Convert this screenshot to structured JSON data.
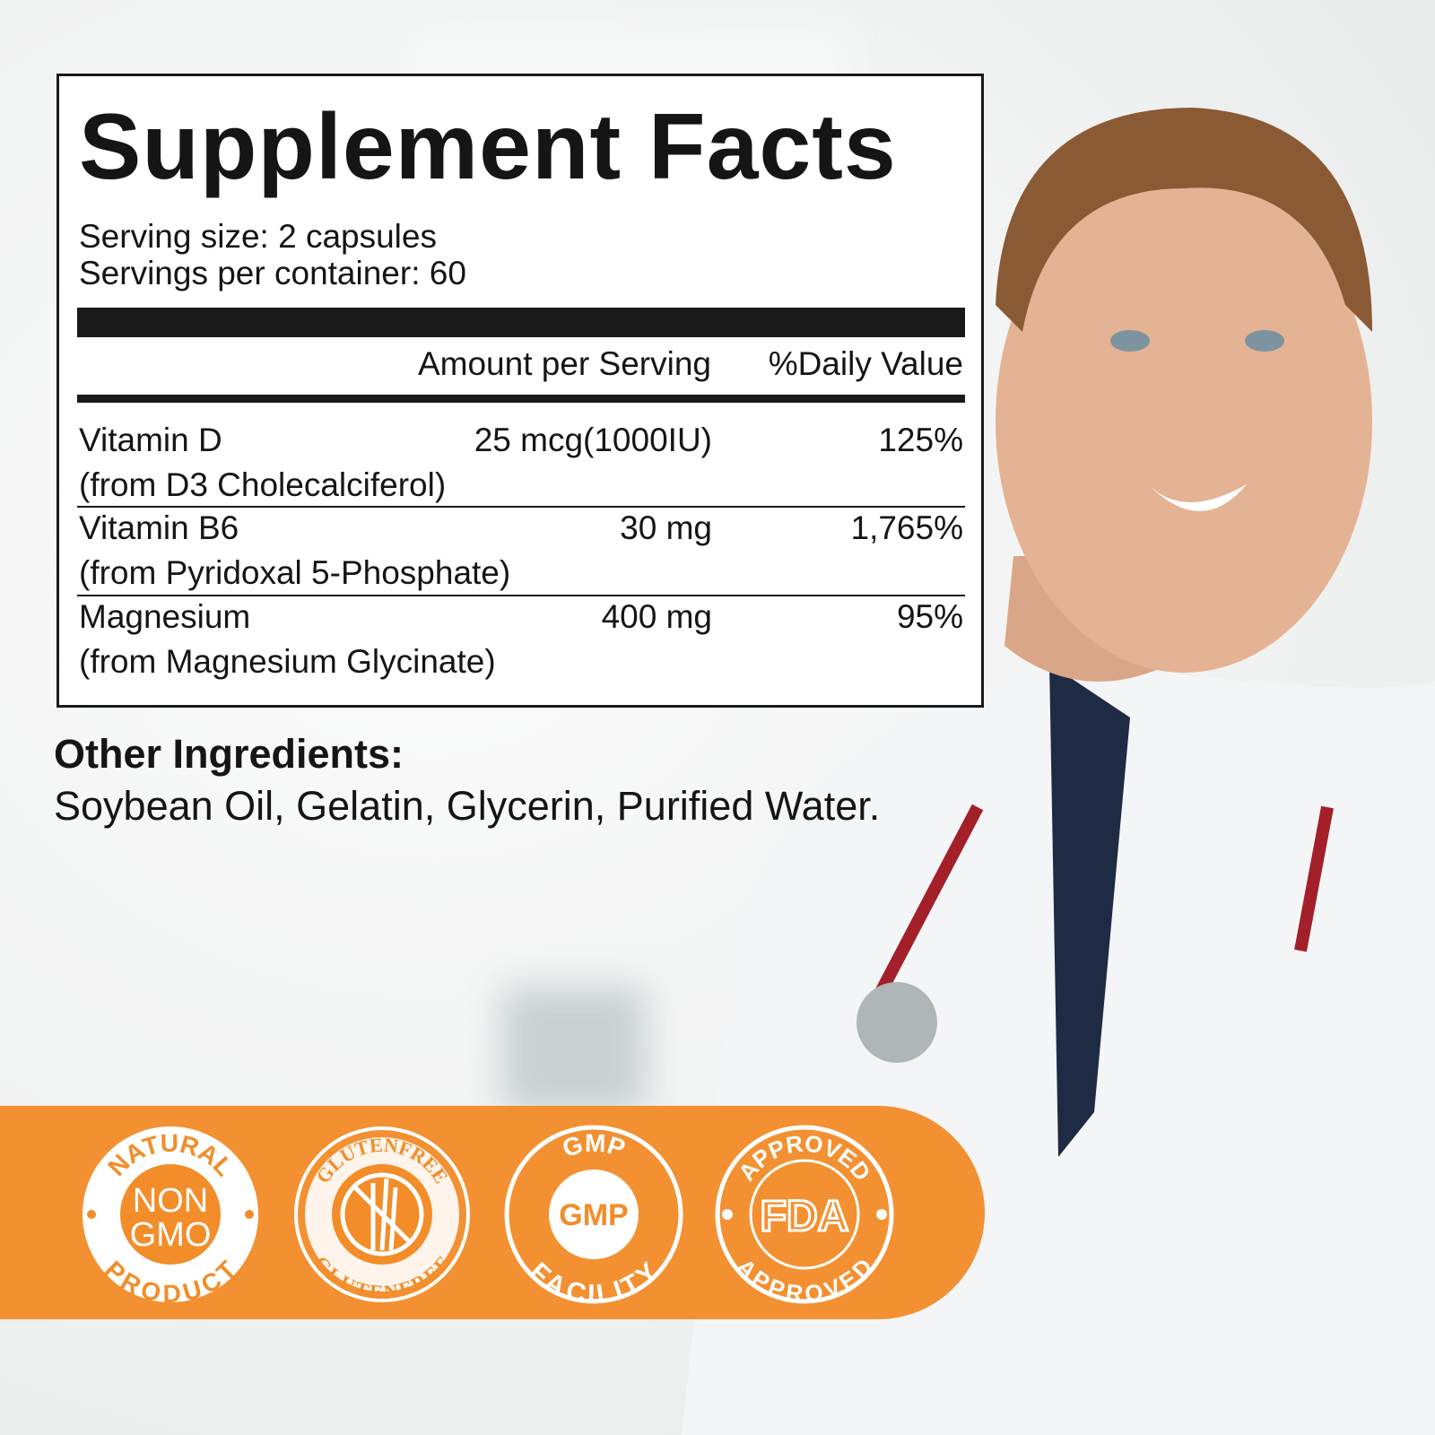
{
  "label": {
    "title": "Supplement Facts",
    "serving_size": "Serving size: 2 capsules",
    "servings_per_container": "Servings per container: 60",
    "header_amount": "Amount per Serving",
    "header_dv": "%Daily Value",
    "rows": [
      {
        "name": "Vitamin D",
        "source": "(from D3 Cholecalciferol)",
        "amount": "25 mcg(1000IU)",
        "dv": "125%"
      },
      {
        "name": "Vitamin B6",
        "source": "(from Pyridoxal 5-Phosphate)",
        "amount": "30 mg",
        "dv": "1,765%"
      },
      {
        "name": "Magnesium",
        "source": "(from Magnesium Glycinate)",
        "amount": "400 mg",
        "dv": "95%"
      }
    ]
  },
  "other_ingredients": {
    "heading": "Other Ingredients:",
    "text": "Soybean Oil, Gelatin, Glycerin, Purified Water."
  },
  "badges": [
    {
      "top": "NATURAL",
      "center1": "NON",
      "center2": "GMO",
      "bottom": "PRODUCT"
    },
    {
      "top": "GLUTENFREE",
      "bottom": "GLUTENFREE",
      "icon": "wheat-crossed-icon"
    },
    {
      "top": "GMP",
      "center1": "GMP",
      "bottom": "FACILITY"
    },
    {
      "top": "APPROVED",
      "center1": "FDA",
      "bottom": "APPROVED"
    }
  ],
  "colors": {
    "accent": "#f28d2a",
    "text": "#151515"
  }
}
